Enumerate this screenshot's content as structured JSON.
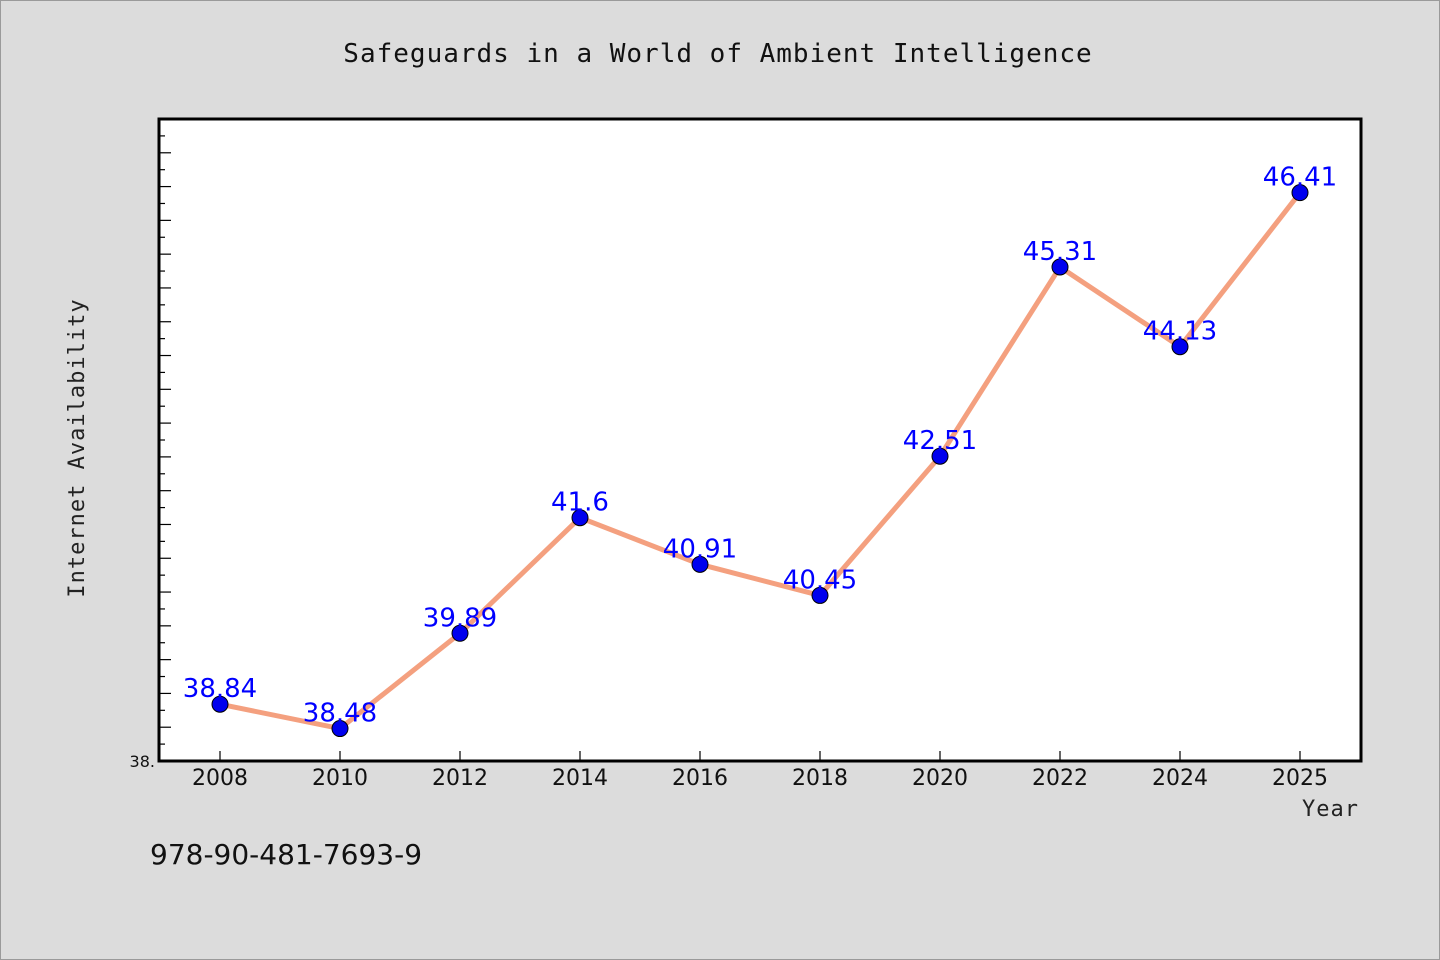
{
  "footer": {
    "code": "978-90-481-7693-9"
  },
  "colors": {
    "background": "#dcdcdc",
    "plot_bg": "#ffffff",
    "line": "#f4a07f",
    "marker": "#0000ee",
    "data_label": "#0000ff"
  },
  "chart_data": {
    "type": "line",
    "title": "Safeguards in a World of Ambient Intelligence",
    "xlabel": "Year",
    "ylabel": "Internet Availability",
    "x": [
      2008,
      2010,
      2012,
      2014,
      2016,
      2018,
      2020,
      2022,
      2024,
      2025
    ],
    "x_tick_labels": [
      "2008",
      "2010",
      "2012",
      "2014",
      "2016",
      "2018",
      "2020",
      "2022",
      "2024",
      "2025"
    ],
    "series": [
      {
        "values": [
          38.84,
          38.48,
          39.89,
          41.6,
          40.91,
          40.45,
          42.51,
          45.31,
          44.13,
          46.41
        ]
      }
    ],
    "data_labels": [
      "38.84",
      "38.48",
      "39.89",
      "41.6",
      "40.91",
      "40.45",
      "42.51",
      "45.31",
      "44.13",
      "46.41"
    ],
    "y_tick_labels": [
      "38."
    ],
    "ylim": [
      38.0,
      47.5
    ],
    "grid": false,
    "legend": "none"
  }
}
